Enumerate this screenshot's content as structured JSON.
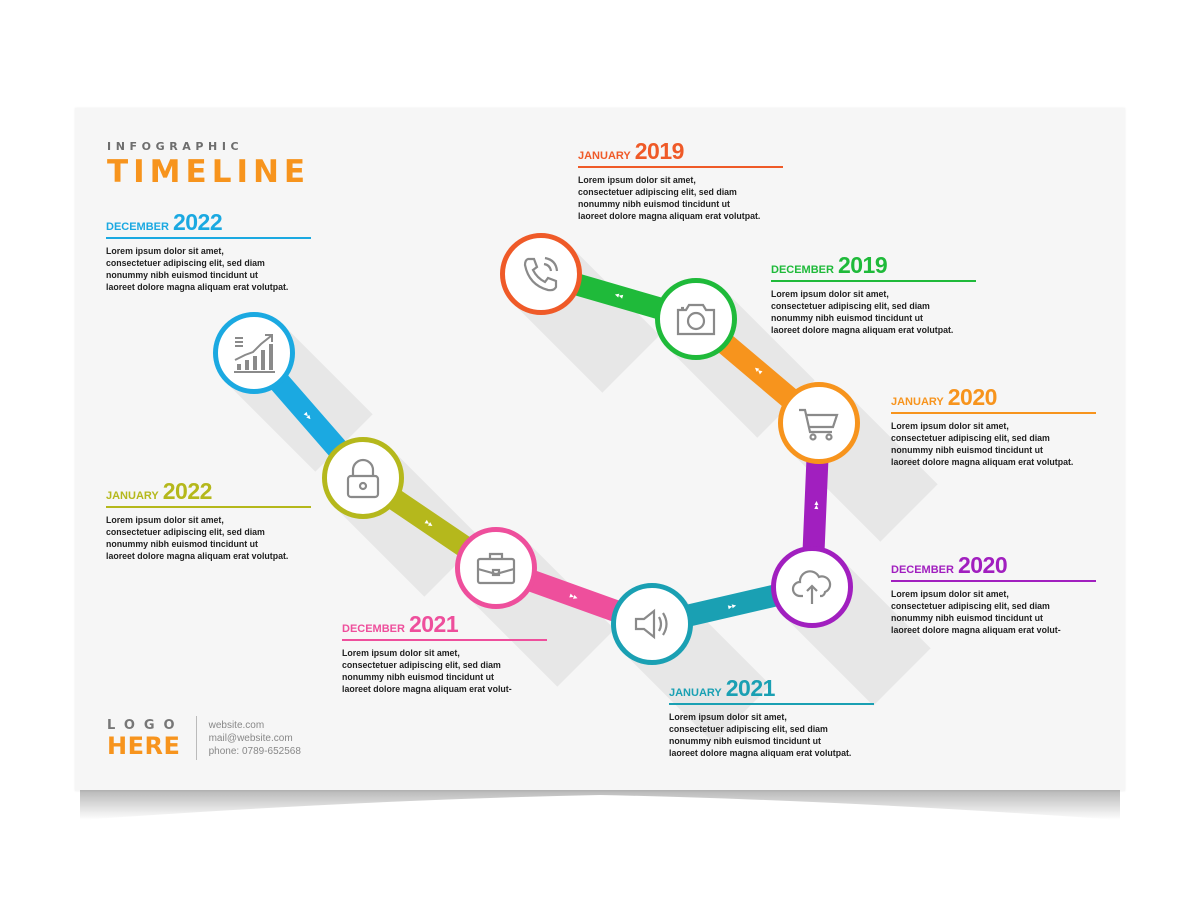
{
  "header": {
    "subtitle": "INFOGRAPHIC",
    "title": "TIMELINE"
  },
  "events": [
    {
      "month": "DECEMBER",
      "year": "2022",
      "color": "#1ba9e1",
      "text": "Lorem ipsum dolor sit amet,\nconsectetuer adipiscing elit, sed diam\nnonummy nibh euismod tincidunt ut\nlaoreet dolore magna aliquam erat volutpat."
    },
    {
      "month": "JANUARY",
      "year": "2022",
      "color": "#b5b81c",
      "text": "Lorem ipsum dolor sit amet,\nconsectetuer adipiscing elit, sed diam\nnonummy nibh euismod tincidunt ut\nlaoreet dolore magna aliquam erat volutpat."
    },
    {
      "month": "DECEMBER",
      "year": "2021",
      "color": "#ee4f9c",
      "text": "Lorem ipsum dolor sit amet,\nconsectetuer adipiscing elit, sed diam\nnonummy nibh euismod tincidunt ut\nlaoreet dolore magna aliquam erat volut-"
    },
    {
      "month": "JANUARY",
      "year": "2021",
      "color": "#1aa0b3",
      "text": "Lorem ipsum dolor sit amet,\nconsectetuer adipiscing elit, sed diam\nnonummy nibh euismod tincidunt ut\nlaoreet dolore magna aliquam erat volutpat."
    },
    {
      "month": "DECEMBER",
      "year": "2020",
      "color": "#a11fbf",
      "text": "Lorem ipsum dolor sit amet,\nconsectetuer adipiscing elit, sed diam\nnonummy nibh euismod tincidunt ut\nlaoreet dolore magna aliquam erat volut-"
    },
    {
      "month": "JANUARY",
      "year": "2020",
      "color": "#f7941d",
      "text": "Lorem ipsum dolor sit amet,\nconsectetuer adipiscing elit, sed diam\nnonummy nibh euismod tincidunt ut\nlaoreet dolore magna aliquam erat volutpat."
    },
    {
      "month": "DECEMBER",
      "year": "2019",
      "color": "#1fba3a",
      "text": "Lorem ipsum dolor sit amet,\nconsectetuer adipiscing elit, sed diam\nnonummy nibh euismod tincidunt ut\nlaoreet dolore magna aliquam erat volutpat."
    },
    {
      "month": "JANUARY",
      "year": "2019",
      "color": "#ef5a28",
      "text": "Lorem ipsum dolor sit amet,\nconsectetuer adipiscing elit, sed diam\nnonummy nibh euismod tincidunt ut\nlaoreet dolore magna aliquam erat volutpat."
    }
  ],
  "nodes": [
    {
      "icon": "growth-chart-icon",
      "color": "#1ba9e1"
    },
    {
      "icon": "padlock-icon",
      "color": "#b5b81c"
    },
    {
      "icon": "briefcase-icon",
      "color": "#ee4f9c"
    },
    {
      "icon": "speaker-icon",
      "color": "#1aa0b3"
    },
    {
      "icon": "cloud-upload-icon",
      "color": "#a11fbf"
    },
    {
      "icon": "shopping-cart-icon",
      "color": "#f7941d"
    },
    {
      "icon": "camera-icon",
      "color": "#1fba3a"
    },
    {
      "icon": "phone-icon",
      "color": "#ef5a28"
    }
  ],
  "footer": {
    "logo_top": "LOGO",
    "logo_bottom": "HERE",
    "website": "website.com",
    "email": "mail@website.com",
    "phone": "phone: 0789-652568"
  }
}
